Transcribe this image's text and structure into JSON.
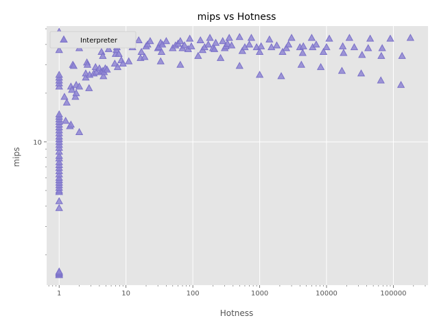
{
  "chart_data": {
    "type": "scatter",
    "title": "mips vs Hotness",
    "xlabel": "Hotness",
    "ylabel": "mips",
    "x_scale": "log",
    "y_scale": "log",
    "xlim": [
      0.65,
      330000
    ],
    "ylim": [
      1.3,
      52
    ],
    "x_ticks": [
      1,
      10,
      100,
      1000,
      10000,
      100000
    ],
    "x_tick_labels": [
      "1",
      "10",
      "100",
      "1000",
      "10000",
      "100000"
    ],
    "y_ticks": [
      10
    ],
    "y_tick_labels": [
      "10"
    ],
    "grid": true,
    "legend": {
      "position": "top-left",
      "entries": [
        "Interpreter"
      ]
    },
    "colors": {
      "marker": "#8f86d4",
      "marker_edge": "#7a70c8",
      "plot_bg": "#e5e5e5",
      "grid": "#ffffff"
    },
    "marker": "triangle-up",
    "series": [
      {
        "name": "Interpreter",
        "points": [
          [
            1,
            1.5
          ],
          [
            1,
            1.52
          ],
          [
            1,
            1.54
          ],
          [
            1,
            1.56
          ],
          [
            1,
            1.58
          ],
          [
            1,
            3.9
          ],
          [
            1,
            4.3
          ],
          [
            1,
            4.9
          ],
          [
            1,
            5.0
          ],
          [
            1,
            5.2
          ],
          [
            1,
            5.4
          ],
          [
            1,
            5.6
          ],
          [
            1,
            5.8
          ],
          [
            1,
            6.0
          ],
          [
            1,
            6.3
          ],
          [
            1,
            6.6
          ],
          [
            1,
            6.9
          ],
          [
            1,
            7.2
          ],
          [
            1,
            7.5
          ],
          [
            1,
            7.9
          ],
          [
            1,
            8.2
          ],
          [
            1,
            8.7
          ],
          [
            1,
            9.2
          ],
          [
            1,
            9.6
          ],
          [
            1,
            10.0
          ],
          [
            1,
            10.4
          ],
          [
            1,
            10.8
          ],
          [
            1,
            11.3
          ],
          [
            1,
            11.8
          ],
          [
            1,
            12.3
          ],
          [
            1,
            12.8
          ],
          [
            1,
            13.3
          ],
          [
            1,
            13.8
          ],
          [
            1,
            14.3
          ],
          [
            1,
            14.8
          ],
          [
            1,
            22.0
          ],
          [
            1,
            23.0
          ],
          [
            1,
            24.0
          ],
          [
            1,
            25.0
          ],
          [
            1,
            26.0
          ],
          [
            1,
            37.0
          ],
          [
            1,
            48.0
          ],
          [
            1.2,
            19.0
          ],
          [
            1.25,
            13.5
          ],
          [
            1.3,
            17.5
          ],
          [
            1.45,
            12.5
          ],
          [
            1.5,
            12.8
          ],
          [
            1.5,
            22.0
          ],
          [
            1.55,
            21.0
          ],
          [
            1.6,
            30.0
          ],
          [
            1.65,
            29.5
          ],
          [
            1.75,
            19.0
          ],
          [
            1.8,
            20.0
          ],
          [
            1.8,
            22.5
          ],
          [
            2.0,
            22.0
          ],
          [
            2.0,
            11.5
          ],
          [
            2.0,
            38.0
          ],
          [
            2.5,
            25.0
          ],
          [
            2.5,
            26.5
          ],
          [
            2.6,
            31.0
          ],
          [
            2.65,
            30.0
          ],
          [
            2.8,
            21.5
          ],
          [
            2.85,
            26.0
          ],
          [
            3.3,
            26.5
          ],
          [
            3.5,
            29.0
          ],
          [
            3.6,
            27.0
          ],
          [
            3.8,
            43.0
          ],
          [
            4.0,
            41.5
          ],
          [
            4.0,
            28.5
          ],
          [
            4.2,
            27.0
          ],
          [
            4.3,
            36.0
          ],
          [
            4.5,
            34.0
          ],
          [
            4.5,
            27.5
          ],
          [
            4.6,
            25.5
          ],
          [
            4.7,
            27.0
          ],
          [
            4.9,
            28.5
          ],
          [
            5.2,
            28.0
          ],
          [
            5.5,
            37.5
          ],
          [
            6.8,
            30.5
          ],
          [
            7.0,
            35.0
          ],
          [
            7.2,
            37.0
          ],
          [
            7.3,
            38.5
          ],
          [
            7.5,
            29.0
          ],
          [
            7.8,
            35.0
          ],
          [
            8.5,
            32.0
          ],
          [
            9.0,
            30.5
          ],
          [
            11.0,
            31.5
          ],
          [
            12.0,
            40.0
          ],
          [
            12.5,
            38.5
          ],
          [
            15.5,
            42.5
          ],
          [
            16.5,
            33.0
          ],
          [
            17.0,
            36.0
          ],
          [
            19.0,
            33.5
          ],
          [
            20.0,
            39.0
          ],
          [
            21.0,
            40.0
          ],
          [
            23.0,
            42.0
          ],
          [
            30.0,
            38.0
          ],
          [
            31.0,
            38.5
          ],
          [
            33.0,
            41.0
          ],
          [
            33.0,
            31.5
          ],
          [
            34.0,
            36.0
          ],
          [
            35.0,
            40.0
          ],
          [
            40.0,
            42.0
          ],
          [
            50.0,
            38.0
          ],
          [
            55.0,
            39.5
          ],
          [
            60.0,
            40.5
          ],
          [
            65.0,
            30.0
          ],
          [
            65.0,
            42.0
          ],
          [
            70.0,
            38.0
          ],
          [
            75.0,
            39.5
          ],
          [
            85.0,
            37.5
          ],
          [
            90.0,
            43.5
          ],
          [
            95.0,
            39.0
          ],
          [
            120.0,
            34.0
          ],
          [
            130.0,
            42.5
          ],
          [
            140.0,
            37.0
          ],
          [
            150.0,
            38.5
          ],
          [
            170.0,
            40.0
          ],
          [
            180.0,
            44.0
          ],
          [
            200.0,
            38.0
          ],
          [
            210.0,
            37.5
          ],
          [
            220.0,
            41.0
          ],
          [
            260.0,
            33.0
          ],
          [
            280.0,
            42.0
          ],
          [
            300.0,
            38.0
          ],
          [
            310.0,
            39.0
          ],
          [
            330.0,
            40.5
          ],
          [
            350.0,
            44.0
          ],
          [
            380.0,
            39.5
          ],
          [
            500.0,
            29.5
          ],
          [
            500.0,
            44.5
          ],
          [
            550.0,
            36.5
          ],
          [
            600.0,
            38.5
          ],
          [
            700.0,
            40.0
          ],
          [
            750.0,
            44.0
          ],
          [
            900.0,
            38.5
          ],
          [
            1000.0,
            26.0
          ],
          [
            1000.0,
            36.0
          ],
          [
            1050.0,
            39.0
          ],
          [
            1400.0,
            43.0
          ],
          [
            1500.0,
            38.5
          ],
          [
            1800.0,
            39.5
          ],
          [
            2100.0,
            25.5
          ],
          [
            2200.0,
            36.0
          ],
          [
            2500.0,
            38.0
          ],
          [
            2700.0,
            40.0
          ],
          [
            3000.0,
            44.0
          ],
          [
            4000.0,
            38.5
          ],
          [
            4200.0,
            30.0
          ],
          [
            4400.0,
            35.5
          ],
          [
            4500.0,
            39.0
          ],
          [
            6000.0,
            44.0
          ],
          [
            6200.0,
            38.5
          ],
          [
            7000.0,
            40.0
          ],
          [
            8200.0,
            29.0
          ],
          [
            9000.0,
            36.0
          ],
          [
            10000.0,
            38.5
          ],
          [
            11000.0,
            43.5
          ],
          [
            17000.0,
            27.5
          ],
          [
            17500.0,
            39.0
          ],
          [
            18000.0,
            35.5
          ],
          [
            22000.0,
            44.0
          ],
          [
            26000.0,
            38.5
          ],
          [
            33000.0,
            26.5
          ],
          [
            34000.0,
            34.5
          ],
          [
            42000.0,
            38.0
          ],
          [
            45000.0,
            43.5
          ],
          [
            65000.0,
            24.0
          ],
          [
            66000.0,
            34.0
          ],
          [
            68000.0,
            38.0
          ],
          [
            90000.0,
            43.5
          ],
          [
            130000.0,
            22.5
          ],
          [
            135000.0,
            34.0
          ],
          [
            180000.0,
            44.0
          ]
        ]
      }
    ]
  }
}
